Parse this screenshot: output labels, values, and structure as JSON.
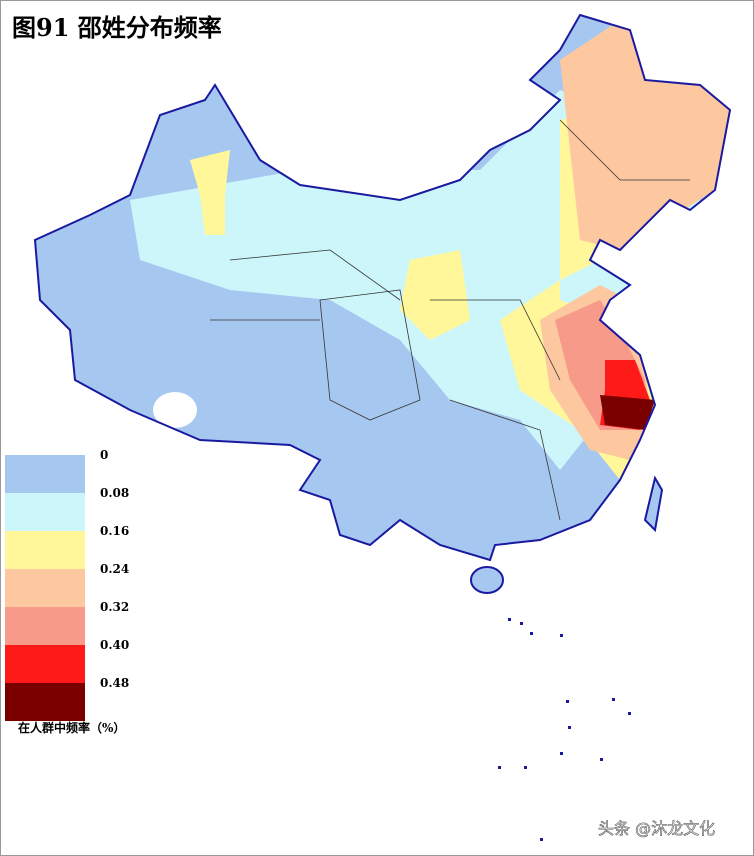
{
  "header": {
    "title": "图91  邵姓分布频率"
  },
  "legend": {
    "colors": [
      "#a6c8f0",
      "#ccf6fa",
      "#fff79a",
      "#fdc8a0",
      "#f79a8a",
      "#ff1a1a",
      "#7a0000"
    ],
    "labels": [
      "0",
      "0.08",
      "0.16",
      "0.24",
      "0.32",
      "0.40",
      "0.48"
    ],
    "caption": "在人群中频率（%）"
  },
  "watermark": "头条 @沐龙文化"
}
